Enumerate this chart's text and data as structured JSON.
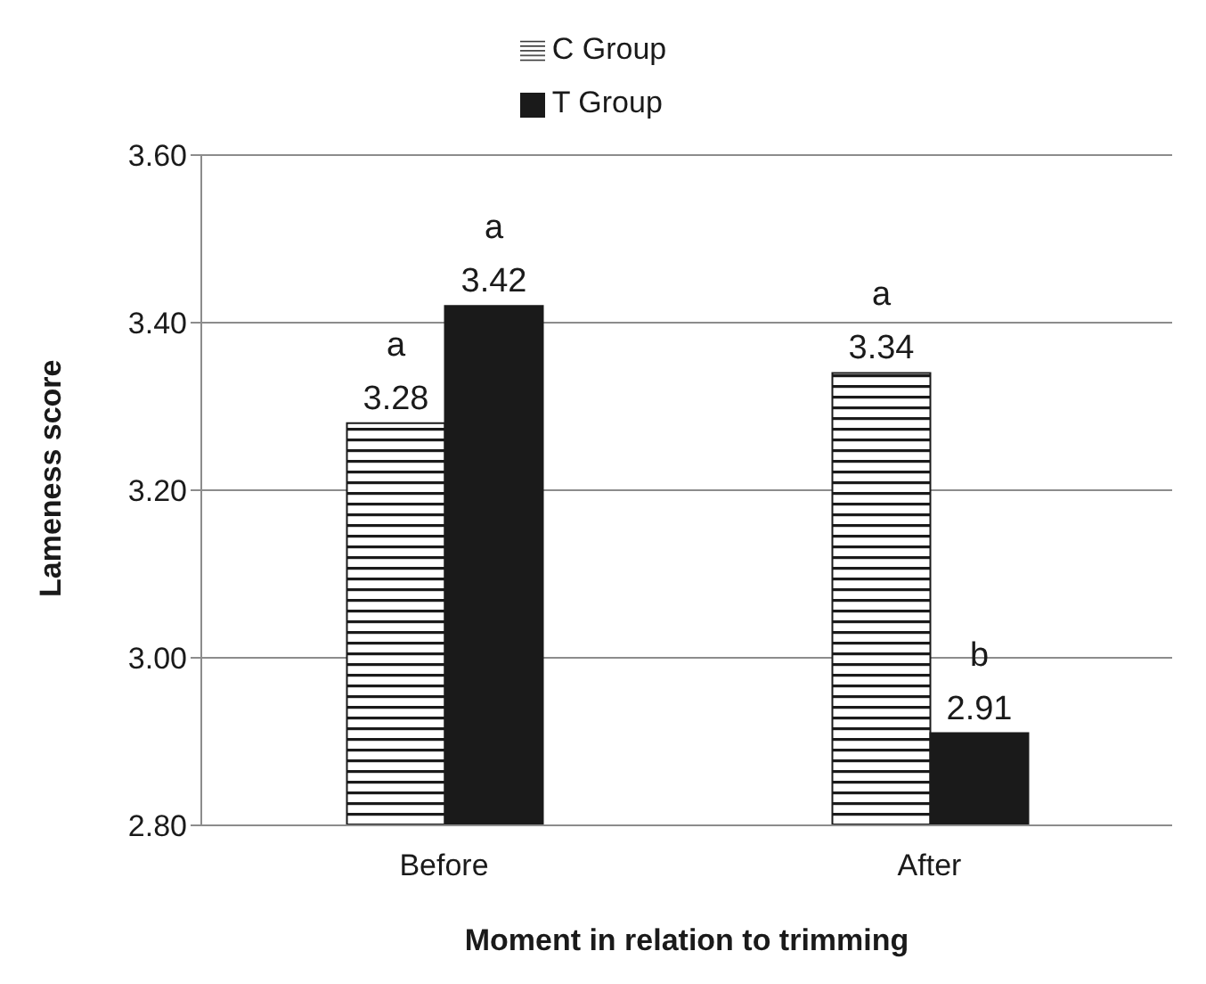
{
  "chart_data": {
    "type": "bar",
    "xlabel": "Moment in relation to trimming",
    "ylabel": "Lameness score",
    "categories": [
      "Before",
      "After"
    ],
    "series": [
      {
        "name": "C Group",
        "color": "#1a1a1a",
        "values": [
          3.28,
          3.34
        ]
      },
      {
        "name": "T Group",
        "color": "#1a1a1a",
        "values": [
          3.42,
          2.91
        ]
      }
    ],
    "ylim": [
      2.8,
      3.6
    ],
    "yticks": [
      {
        "value": 2.8,
        "label": "2.80"
      },
      {
        "value": 3.0,
        "label": "3.00"
      },
      {
        "value": 3.2,
        "label": "3.20"
      },
      {
        "value": 3.4,
        "label": "3.40"
      },
      {
        "value": 3.6,
        "label": "3.60"
      }
    ],
    "grid": "y",
    "legend": "top",
    "data_labels": true,
    "annotations": [
      {
        "text": "a",
        "x": "Before",
        "y": 3.28
      },
      {
        "text": "a",
        "x": "Before",
        "y": 3.42
      },
      {
        "text": "a",
        "x": "After",
        "y": 3.34
      },
      {
        "text": "b",
        "x": "After",
        "y": 2.91
      }
    ]
  }
}
